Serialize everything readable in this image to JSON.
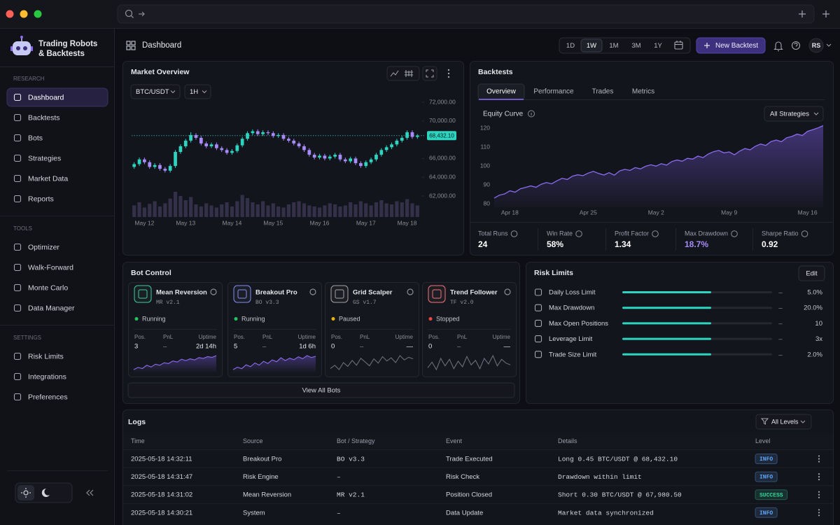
{
  "sidebar": {
    "app_name": [
      "Trading Robots",
      "& Backtests"
    ],
    "sections": [
      {
        "title": "RESEARCH",
        "items": [
          {
            "label": "Dashboard",
            "active": true
          },
          {
            "label": "Backtests"
          },
          {
            "label": "Bots"
          },
          {
            "label": "Strategies"
          },
          {
            "label": "Market Data"
          },
          {
            "label": "Reports"
          }
        ]
      },
      {
        "title": "TOOLS",
        "items": [
          {
            "label": "Optimizer"
          },
          {
            "label": "Walk-Forward"
          },
          {
            "label": "Monte Carlo"
          },
          {
            "label": "Data Manager"
          }
        ]
      },
      {
        "title": "SETTINGS",
        "items": [
          {
            "label": "Risk Limits"
          },
          {
            "label": "Integrations"
          },
          {
            "label": "Preferences"
          }
        ]
      }
    ]
  },
  "header": {
    "title": "Dashboard",
    "ranges": [
      {
        "label": "1D"
      },
      {
        "label": "1W",
        "active": true
      },
      {
        "label": "1M"
      },
      {
        "label": "3M"
      },
      {
        "label": "1Y"
      }
    ],
    "new_button": "New Backtest",
    "avatar": "RS"
  },
  "market_overview": {
    "title": "Market Overview",
    "pair": "BTC/USDT",
    "interval": "1H"
  },
  "backtests": {
    "title": "Backtests",
    "tabs": [
      {
        "label": "Overview",
        "active": true
      },
      {
        "label": "Performance"
      },
      {
        "label": "Trades"
      },
      {
        "label": "Metrics"
      }
    ],
    "filter": "All Strategies",
    "stats": [
      {
        "label": "Total Runs",
        "value": "24"
      },
      {
        "label": "Win Rate",
        "value": "58%"
      },
      {
        "label": "Profit Factor",
        "value": "1.34"
      },
      {
        "label": "Max Drawdown",
        "value": "18.7%",
        "color": "#a78bfa"
      },
      {
        "label": "Sharpe Ratio",
        "value": "0.92"
      }
    ]
  },
  "chart_data": [
    {
      "type": "candlestick",
      "up_color": "#2dd4bf",
      "down_color": "#a78bfa",
      "volume_color": "#34304a",
      "categories": [
        null,
        null,
        "May 12",
        null,
        null,
        null,
        null,
        null,
        null,
        null,
        "May 13",
        null,
        null,
        null,
        null,
        null,
        null,
        null,
        null,
        "May 14",
        null,
        null,
        null,
        null,
        null,
        null,
        null,
        "May 15",
        null,
        null,
        null,
        null,
        null,
        null,
        null,
        null,
        "May 16",
        null,
        null,
        null,
        null,
        null,
        null,
        null,
        null,
        "May 17",
        null,
        null,
        null,
        null,
        null,
        null,
        null,
        "May 18",
        null,
        null
      ],
      "open": [
        65100,
        65400,
        65900,
        65600,
        65100,
        65300,
        64900,
        64700,
        65200,
        66700,
        67300,
        67900,
        68500,
        68200,
        67600,
        67300,
        67500,
        67100,
        66900,
        66600,
        66800,
        67400,
        68100,
        68700,
        68900,
        68600,
        68800,
        68700,
        68400,
        68500,
        68100,
        67900,
        67600,
        67300,
        66900,
        66400,
        66100,
        66300,
        66000,
        66200,
        66400,
        65900,
        65700,
        66000,
        65500,
        65200,
        65600,
        65900,
        66400,
        66900,
        67200,
        67500,
        67900,
        68200,
        68800,
        68300
      ],
      "high": [
        65600,
        66100,
        66100,
        65800,
        65500,
        65500,
        65100,
        65400,
        66900,
        67500,
        68100,
        68800,
        68700,
        68400,
        67800,
        67700,
        67700,
        67300,
        67100,
        67000,
        67600,
        68300,
        68900,
        69100,
        69100,
        69000,
        69000,
        68900,
        68700,
        68700,
        68300,
        68100,
        67800,
        67500,
        67100,
        66600,
        66500,
        66500,
        66400,
        66600,
        66600,
        66100,
        66200,
        66200,
        65700,
        65800,
        66100,
        66600,
        67100,
        67400,
        67700,
        68100,
        68400,
        69000,
        69000,
        68600
      ],
      "low": [
        64900,
        65200,
        65400,
        64900,
        64900,
        64700,
        64500,
        64500,
        65000,
        66500,
        67100,
        67700,
        68000,
        67400,
        67100,
        67100,
        66900,
        66700,
        66400,
        66400,
        66600,
        67200,
        67900,
        68500,
        68400,
        68400,
        68500,
        68200,
        68200,
        67900,
        67700,
        67400,
        67100,
        66700,
        66200,
        65900,
        65900,
        65800,
        65800,
        66000,
        65700,
        65500,
        65500,
        65300,
        65000,
        65000,
        65400,
        65700,
        66200,
        66700,
        67000,
        67300,
        67700,
        68000,
        68100,
        68100
      ],
      "close": [
        65400,
        65900,
        65600,
        65100,
        65300,
        64900,
        64700,
        65200,
        66700,
        67300,
        67900,
        68500,
        68200,
        67600,
        67300,
        67500,
        67100,
        66900,
        66600,
        66800,
        67400,
        68100,
        68700,
        68900,
        68600,
        68800,
        68700,
        68400,
        68500,
        68100,
        67900,
        67600,
        67300,
        66900,
        66400,
        66100,
        66300,
        66000,
        66200,
        66400,
        65900,
        65700,
        66000,
        65500,
        65200,
        65600,
        65900,
        66400,
        66900,
        67200,
        67500,
        67900,
        68200,
        68800,
        68300,
        68432.1
      ],
      "volume": [
        22,
        28,
        18,
        25,
        30,
        20,
        26,
        35,
        48,
        40,
        32,
        38,
        24,
        20,
        26,
        22,
        18,
        24,
        28,
        20,
        30,
        42,
        36,
        28,
        24,
        30,
        22,
        26,
        20,
        18,
        24,
        28,
        30,
        26,
        22,
        20,
        18,
        22,
        26,
        24,
        20,
        22,
        28,
        24,
        30,
        26,
        22,
        28,
        32,
        26,
        24,
        30,
        28,
        34,
        26,
        22
      ],
      "ylim": [
        61000,
        73000
      ],
      "yticks": [
        {
          "value": 62000,
          "label": "62,000.00"
        },
        {
          "value": 64000,
          "label": "64,000.00"
        },
        {
          "value": 66000,
          "label": "66,000.00"
        },
        {
          "value": 70000,
          "label": "70,000.00"
        },
        {
          "value": 72000,
          "label": "72,000.00"
        }
      ],
      "last_price": {
        "value": 68432.1,
        "label": "68,432.10"
      }
    },
    {
      "type": "line",
      "title": "Equity Curve",
      "color": "#8b6cf0",
      "categories": [
        null,
        null,
        null,
        "Apr 18",
        null,
        null,
        null,
        null,
        null,
        null,
        null,
        null,
        null,
        null,
        null,
        null,
        null,
        null,
        "Apr 25",
        null,
        null,
        null,
        null,
        null,
        null,
        null,
        null,
        null,
        null,
        null,
        null,
        "May 2",
        null,
        null,
        null,
        null,
        null,
        null,
        null,
        null,
        null,
        null,
        null,
        null,
        null,
        "May 9",
        null,
        null,
        null,
        null,
        null,
        null,
        null,
        null,
        null,
        null,
        null,
        null,
        null,
        null,
        "May 16",
        null,
        null,
        null
      ],
      "values": [
        83.0,
        84.5,
        85.2,
        86.8,
        86.1,
        87.9,
        88.6,
        89.4,
        88.7,
        90.3,
        91.2,
        90.5,
        92.1,
        93.4,
        92.8,
        94.6,
        95.3,
        94.8,
        96.2,
        97.1,
        96.0,
        95.2,
        96.4,
        95.1,
        97.3,
        98.2,
        97.6,
        99.1,
        98.4,
        99.8,
        100.6,
        99.9,
        101.2,
        100.4,
        102.3,
        103.1,
        102.5,
        104.0,
        103.6,
        105.2,
        104.4,
        106.3,
        107.5,
        108.2,
        106.9,
        107.4,
        105.9,
        107.8,
        109.2,
        108.5,
        110.4,
        111.6,
        110.8,
        112.9,
        113.7,
        112.8,
        114.9,
        115.6,
        116.8,
        116.1,
        118.3,
        119.2,
        120.1,
        121.3
      ],
      "ylim": [
        78,
        123
      ],
      "yticks": [
        80,
        90,
        100,
        110,
        120
      ]
    }
  ],
  "bot_control": {
    "title": "Bot Control",
    "metric_labels": [
      "Pos.",
      "PnL",
      "Uptime"
    ],
    "view_all": "View All Bots",
    "bots": [
      {
        "name": "Mean Reversion",
        "version": "MR v2.1",
        "status": "Running",
        "status_color": "#22c55e",
        "icon_color": "#34d399",
        "line_color": "#8b6cf0",
        "pos": "3",
        "pnl": "–",
        "uptime": "2d 14h",
        "sparkline": [
          3,
          4,
          3.5,
          5,
          4.2,
          5.5,
          5,
          6.2,
          5.8,
          7,
          6.5,
          7.8,
          7.2,
          8,
          7.5,
          8.6,
          8.2,
          9,
          8.7,
          9.5
        ]
      },
      {
        "name": "Breakout Pro",
        "version": "BO v3.3",
        "status": "Running",
        "status_color": "#22c55e",
        "icon_color": "#818cf8",
        "line_color": "#8b6cf0",
        "pos": "5",
        "pnl": "–",
        "uptime": "1d 6h",
        "sparkline": [
          4,
          5,
          4.4,
          6,
          5.2,
          6.8,
          5.9,
          7.5,
          6.6,
          8.1,
          7.3,
          9,
          7.8,
          8.8,
          8.2,
          9.4,
          8.6,
          9.9,
          9.1,
          9.6
        ]
      },
      {
        "name": "Grid Scalper",
        "version": "GS v1.7",
        "status": "Paused",
        "status_color": "#eab308",
        "icon_color": "#a8a29e",
        "line_color": "#6b6e7b",
        "pos": "0",
        "pnl": "–",
        "uptime": "—",
        "sparkline": [
          5,
          5.6,
          4.8,
          6.1,
          5.4,
          6.5,
          5.6,
          6.9,
          6.2,
          5.5,
          6.8,
          6,
          7.2,
          6.4,
          7,
          6.1,
          7.4,
          6.6,
          7.1,
          6.8
        ]
      },
      {
        "name": "Trend Follower",
        "version": "TF v2.0",
        "status": "Stopped",
        "status_color": "#ef4444",
        "icon_color": "#f87171",
        "line_color": "#6b6e7b",
        "pos": "0",
        "pnl": "–",
        "uptime": "—",
        "sparkline": [
          6,
          6.6,
          5.8,
          7,
          6.2,
          6.9,
          5.9,
          6.7,
          6.1,
          7.2,
          6.3,
          6.8,
          5.9,
          7,
          6.4,
          7.3,
          6.2,
          6.9,
          6.5,
          6.3
        ]
      }
    ]
  },
  "risk_limits": {
    "title": "Risk Limits",
    "edit": "Edit",
    "rows": [
      {
        "label": "Daily Loss Limit",
        "dash": "–",
        "value": "5.0%"
      },
      {
        "label": "Max Drawdown",
        "dash": "–",
        "value": "20.0%"
      },
      {
        "label": "Max Open Positions",
        "dash": "–",
        "value": "10"
      },
      {
        "label": "Leverage Limit",
        "dash": "–",
        "value": "3x"
      },
      {
        "label": "Trade Size Limit",
        "dash": "–",
        "value": "2.0%"
      }
    ]
  },
  "logs": {
    "title": "Logs",
    "filter": "All Levels",
    "columns": [
      "Time",
      "Source",
      "Bot / Strategy",
      "Event",
      "Details",
      "Level"
    ],
    "rows": [
      {
        "cells": [
          "2025-05-18 14:32:11",
          "Breakout Pro",
          "BO v3.3",
          "Trade Executed",
          "Long 0.45 BTC/USDT @ 68,432.10",
          "INFO"
        ],
        "level_color": "#60a5fa"
      },
      {
        "cells": [
          "2025-05-18 14:31:47",
          "Risk Engine",
          "–",
          "Risk Check",
          "Drawdown within limit",
          "INFO"
        ],
        "level_color": "#60a5fa"
      },
      {
        "cells": [
          "2025-05-18 14:31:02",
          "Mean Reversion",
          "MR v2.1",
          "Position Closed",
          "Short 0.30 BTC/USDT @ 67,980.50",
          "SUCCESS"
        ],
        "level_color": "#34d399"
      },
      {
        "cells": [
          "2025-05-18 14:30:21",
          "System",
          "–",
          "Data Update",
          "Market data synchronized",
          "INFO"
        ],
        "level_color": "#60a5fa"
      }
    ]
  }
}
